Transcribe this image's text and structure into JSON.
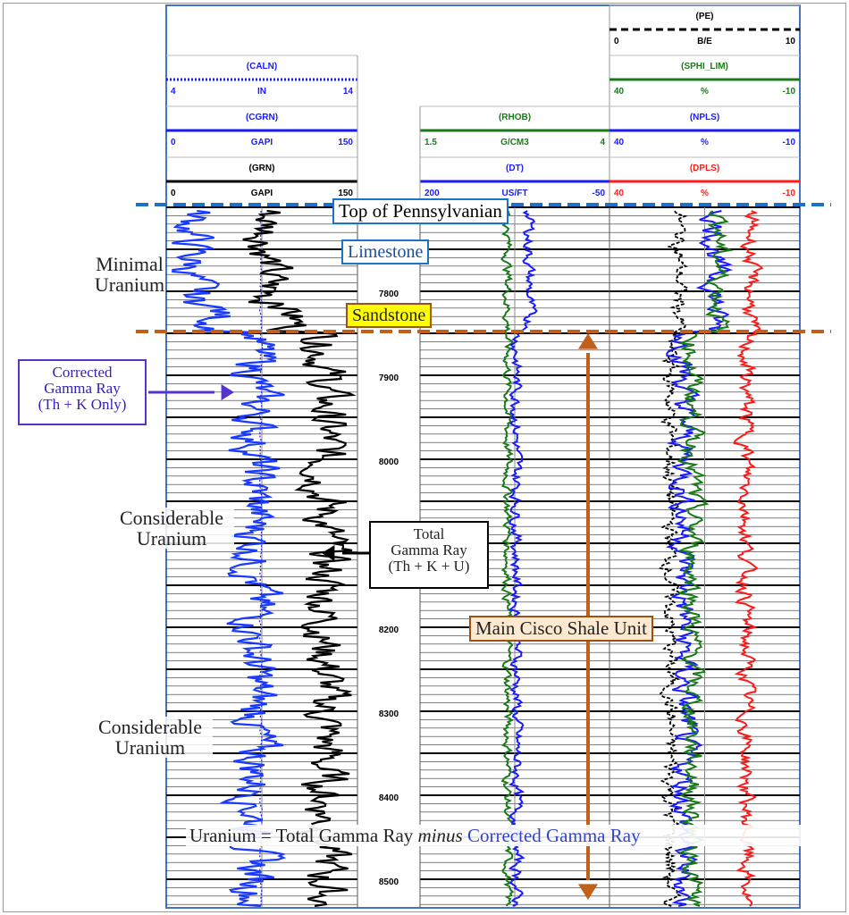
{
  "chart_data": {
    "type": "line",
    "title": "",
    "depth_axis": {
      "ticks": [
        "7800",
        "7900",
        "8000",
        "8200",
        "8300",
        "8400",
        "8500"
      ]
    },
    "track1_headers": [
      {
        "name": "(CALN)",
        "min": "4",
        "unit": "IN",
        "max": "14",
        "color": "#1a1aff",
        "style": "dotted"
      },
      {
        "name": "(CGRN)",
        "min": "0",
        "unit": "GAPI",
        "max": "150",
        "color": "#1a1aff",
        "style": "solid"
      },
      {
        "name": "(GRN)",
        "min": "0",
        "unit": "GAPI",
        "max": "150",
        "color": "#000000",
        "style": "solid"
      }
    ],
    "track2_headers": [
      {
        "name": "(RHOB)",
        "min": "1.5",
        "unit": "G/CM3",
        "max": "4",
        "color": "#1a7a1a",
        "style": "solid"
      },
      {
        "name": "(DT)",
        "min": "200",
        "unit": "US/FT",
        "max": "-50",
        "color": "#1a1aff",
        "style": "solid"
      }
    ],
    "track3_headers": [
      {
        "name": "(PE)",
        "min": "0",
        "unit": "B/E",
        "max": "10",
        "color": "#000000",
        "style": "dashed"
      },
      {
        "name": "(SPHI_LIM)",
        "min": "40",
        "unit": "%",
        "max": "-10",
        "color": "#1a7a1a",
        "style": "solid"
      },
      {
        "name": "(NPLS)",
        "min": "40",
        "unit": "%",
        "max": "-10",
        "color": "#1a1aff",
        "style": "solid"
      },
      {
        "name": "(DPLS)",
        "min": "40",
        "unit": "%",
        "max": "-10",
        "color": "#ff1a1a",
        "style": "solid"
      }
    ],
    "series": [
      {
        "name": "(GRN)",
        "values_by_zone": {
          "limestone": 80,
          "sandstone": 100,
          "shale": 125
        }
      },
      {
        "name": "(CGRN)",
        "values_by_zone": {
          "limestone": 20,
          "sandstone": 40,
          "shale": 70
        }
      }
    ]
  },
  "annotations": {
    "top_pennsylvanian": "Top of Pennsylvanian",
    "limestone": "Limestone",
    "sandstone": "Sandstone",
    "minimal_uranium": [
      "Minimal",
      "Uranium"
    ],
    "corrected_gr": [
      "Corrected",
      "Gamma Ray",
      "(Th + K  Only)"
    ],
    "considerable_1": [
      "Considerable",
      "Uranium"
    ],
    "considerable_2": [
      "Considerable",
      "Uranium"
    ],
    "total_gr": [
      "Total",
      "Gamma Ray",
      "(Th + K + U)"
    ],
    "main_cisco": "Main Cisco Shale Unit",
    "equation_a": "Uranium  =  Total Gamma Ray ",
    "equation_minus": "minus",
    "equation_b": " Corrected Gamma Ray"
  },
  "colors": {
    "blue_marker": "#1a73c8",
    "orange_marker": "#c0601a",
    "limestone_box": "#1a73c8",
    "sandstone_fill": "#ffff00",
    "cisco_fill": "#fde9d0",
    "corrected_arrow": "#5533cc"
  }
}
